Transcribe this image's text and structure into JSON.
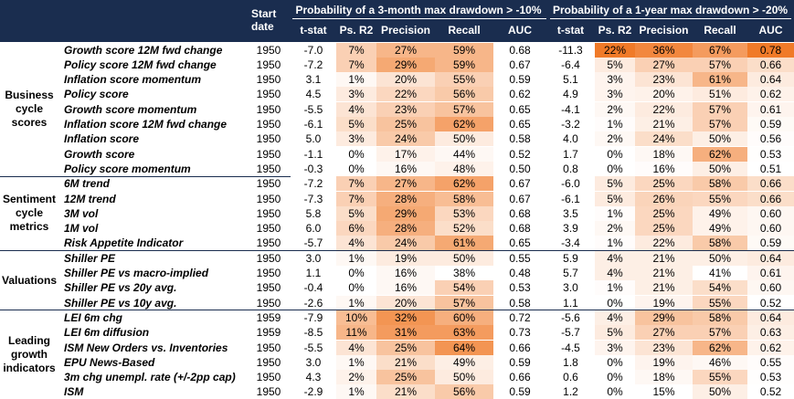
{
  "header": {
    "start_date_line1": "Start",
    "start_date_line2": "date",
    "group_3m": "Probability of a 3-month max drawdown > -10%",
    "group_1y": "Probability of a 1-year max drawdown > -20%",
    "columns": [
      "t-stat",
      "Ps. R2",
      "Precision",
      "Recall",
      "AUC"
    ]
  },
  "colors": {
    "header_bg": "#1a2d4f",
    "heat_low": "#ffffff",
    "heat_high": "#f07a28"
  },
  "groups": [
    {
      "label": [
        "Business",
        "cycle",
        "scores"
      ],
      "rows": [
        {
          "metric": "Growth score 12M fwd change",
          "start": "1950",
          "a": [
            "-7.0",
            "7%",
            "27%",
            "59%",
            "0.68"
          ],
          "b": [
            "-11.3",
            "22%",
            "36%",
            "67%",
            "0.78"
          ],
          "ha": [
            0,
            0.35,
            0.55,
            0.55,
            0
          ],
          "hb": [
            0,
            1.0,
            0.9,
            0.75,
            1.0
          ]
        },
        {
          "metric": "Policy score 12M fwd change",
          "start": "1950",
          "a": [
            "-7.2",
            "7%",
            "29%",
            "59%",
            "0.67"
          ],
          "b": [
            "-6.4",
            "5%",
            "27%",
            "57%",
            "0.66"
          ],
          "ha": [
            0,
            0.35,
            0.65,
            0.55,
            0
          ],
          "hb": [
            0,
            0.15,
            0.35,
            0.35,
            0.25
          ]
        },
        {
          "metric": "Inflation score momentum",
          "start": "1950",
          "a": [
            "3.1",
            "1%",
            "20%",
            "55%",
            "0.59"
          ],
          "b": [
            "5.1",
            "3%",
            "23%",
            "61%",
            "0.64"
          ],
          "ha": [
            0,
            0.05,
            0.2,
            0.35,
            0
          ],
          "hb": [
            0,
            0.08,
            0.2,
            0.55,
            0.15
          ]
        },
        {
          "metric": "Policy score",
          "start": "1950",
          "a": [
            "4.5",
            "3%",
            "22%",
            "56%",
            "0.62"
          ],
          "b": [
            "4.9",
            "3%",
            "20%",
            "51%",
            "0.62"
          ],
          "ha": [
            0,
            0.15,
            0.3,
            0.4,
            0
          ],
          "hb": [
            0,
            0.08,
            0.1,
            0.15,
            0.1
          ]
        },
        {
          "metric": "Growth score momentum",
          "start": "1950",
          "a": [
            "-5.5",
            "4%",
            "23%",
            "57%",
            "0.65"
          ],
          "b": [
            "-4.1",
            "2%",
            "22%",
            "57%",
            "0.61"
          ],
          "ha": [
            0,
            0.2,
            0.35,
            0.45,
            0
          ],
          "hb": [
            0,
            0.05,
            0.15,
            0.35,
            0.08
          ]
        },
        {
          "metric": "Inflation score 12M fwd change",
          "start": "1950",
          "a": [
            "-6.1",
            "5%",
            "25%",
            "62%",
            "0.65"
          ],
          "b": [
            "-3.2",
            "1%",
            "21%",
            "57%",
            "0.59"
          ],
          "ha": [
            0,
            0.25,
            0.45,
            0.7,
            0
          ],
          "hb": [
            0,
            0.02,
            0.12,
            0.35,
            0.04
          ]
        },
        {
          "metric": "Inflation score",
          "start": "1950",
          "a": [
            "5.0",
            "3%",
            "24%",
            "50%",
            "0.58"
          ],
          "b": [
            "4.0",
            "2%",
            "24%",
            "50%",
            "0.56"
          ],
          "ha": [
            0,
            0.15,
            0.4,
            0.15,
            0
          ],
          "hb": [
            0,
            0.05,
            0.25,
            0.12,
            0.02
          ]
        },
        {
          "metric": "Growth score",
          "start": "1950",
          "a": [
            "-1.1",
            "0%",
            "17%",
            "44%",
            "0.52"
          ],
          "b": [
            "1.7",
            "0%",
            "18%",
            "62%",
            "0.53"
          ],
          "ha": [
            0,
            0,
            0.1,
            0.05,
            0
          ],
          "hb": [
            0,
            0,
            0.05,
            0.6,
            0.01
          ]
        },
        {
          "metric": "Policy score momentum",
          "start": "1950",
          "a": [
            "-0.3",
            "0%",
            "16%",
            "48%",
            "0.50"
          ],
          "b": [
            "0.8",
            "0%",
            "16%",
            "50%",
            "0.51"
          ],
          "ha": [
            0,
            0,
            0.05,
            0.1,
            0
          ],
          "hb": [
            0,
            0,
            0.02,
            0.12,
            0
          ]
        }
      ]
    },
    {
      "label": [
        "Sentiment",
        "cycle",
        "metrics"
      ],
      "rows": [
        {
          "metric": "6M trend",
          "start": "1950",
          "a": [
            "-7.2",
            "7%",
            "27%",
            "62%",
            "0.67"
          ],
          "b": [
            "-6.0",
            "5%",
            "25%",
            "58%",
            "0.66"
          ],
          "ha": [
            0,
            0.35,
            0.55,
            0.7,
            0
          ],
          "hb": [
            0,
            0.15,
            0.3,
            0.4,
            0.25
          ]
        },
        {
          "metric": "12M trend",
          "start": "1950",
          "a": [
            "-7.3",
            "7%",
            "28%",
            "58%",
            "0.67"
          ],
          "b": [
            "-6.1",
            "5%",
            "26%",
            "55%",
            "0.66"
          ],
          "ha": [
            0,
            0.35,
            0.6,
            0.5,
            0
          ],
          "hb": [
            0,
            0.15,
            0.32,
            0.3,
            0.25
          ]
        },
        {
          "metric": "3M vol",
          "start": "1950",
          "a": [
            "5.8",
            "5%",
            "29%",
            "53%",
            "0.68"
          ],
          "b": [
            "3.5",
            "1%",
            "25%",
            "49%",
            "0.60"
          ],
          "ha": [
            0,
            0.25,
            0.65,
            0.3,
            0
          ],
          "hb": [
            0,
            0.02,
            0.3,
            0.1,
            0.06
          ]
        },
        {
          "metric": "1M vol",
          "start": "1950",
          "a": [
            "6.0",
            "6%",
            "28%",
            "52%",
            "0.68"
          ],
          "b": [
            "3.9",
            "2%",
            "25%",
            "49%",
            "0.60"
          ],
          "ha": [
            0,
            0.3,
            0.6,
            0.25,
            0
          ],
          "hb": [
            0,
            0.05,
            0.3,
            0.1,
            0.06
          ]
        },
        {
          "metric": "Risk Appetite Indicator",
          "start": "1950",
          "a": [
            "-5.7",
            "4%",
            "24%",
            "61%",
            "0.65"
          ],
          "b": [
            "-3.4",
            "1%",
            "22%",
            "58%",
            "0.59"
          ],
          "ha": [
            0,
            0.2,
            0.4,
            0.65,
            0
          ],
          "hb": [
            0,
            0.02,
            0.15,
            0.4,
            0.04
          ]
        }
      ]
    },
    {
      "label": [
        "Valuations"
      ],
      "rows": [
        {
          "metric": "Shiller PE",
          "start": "1950",
          "a": [
            "3.0",
            "1%",
            "19%",
            "50%",
            "0.55"
          ],
          "b": [
            "5.9",
            "4%",
            "21%",
            "50%",
            "0.64"
          ],
          "ha": [
            0,
            0.05,
            0.15,
            0.15,
            0
          ],
          "hb": [
            0,
            0.12,
            0.12,
            0.12,
            0.15
          ]
        },
        {
          "metric": "Shiller PE vs macro-implied",
          "start": "1950",
          "a": [
            "1.1",
            "0%",
            "16%",
            "38%",
            "0.48"
          ],
          "b": [
            "5.7",
            "4%",
            "21%",
            "41%",
            "0.61"
          ],
          "ha": [
            0,
            0,
            0.05,
            0,
            0
          ],
          "hb": [
            0,
            0.12,
            0.12,
            0,
            0.08
          ]
        },
        {
          "metric": "Shiller PE vs 20y avg.",
          "start": "1950",
          "a": [
            "-0.4",
            "0%",
            "16%",
            "54%",
            "0.53"
          ],
          "b": [
            "3.0",
            "1%",
            "21%",
            "54%",
            "0.60"
          ],
          "ha": [
            0,
            0,
            0.05,
            0.35,
            0
          ],
          "hb": [
            0,
            0.02,
            0.12,
            0.25,
            0.06
          ]
        },
        {
          "metric": "Shiller PE vs 10y avg.",
          "start": "1950",
          "a": [
            "-2.6",
            "1%",
            "20%",
            "57%",
            "0.58"
          ],
          "b": [
            "1.1",
            "0%",
            "19%",
            "55%",
            "0.52"
          ],
          "ha": [
            0,
            0.05,
            0.2,
            0.45,
            0
          ],
          "hb": [
            0,
            0,
            0.08,
            0.3,
            0
          ]
        }
      ]
    },
    {
      "label": [
        "Leading",
        "growth",
        "indicators"
      ],
      "rows": [
        {
          "metric": "LEI 6m chg",
          "start": "1959",
          "a": [
            "-7.9",
            "10%",
            "32%",
            "60%",
            "0.72"
          ],
          "b": [
            "-5.6",
            "4%",
            "29%",
            "58%",
            "0.64"
          ],
          "ha": [
            0,
            0.5,
            0.8,
            0.6,
            0
          ],
          "hb": [
            0,
            0.12,
            0.45,
            0.4,
            0.15
          ]
        },
        {
          "metric": "LEI 6m diffusion",
          "start": "1959",
          "a": [
            "-8.5",
            "11%",
            "31%",
            "63%",
            "0.73"
          ],
          "b": [
            "-5.7",
            "5%",
            "27%",
            "57%",
            "0.63"
          ],
          "ha": [
            0,
            0.55,
            0.75,
            0.75,
            0
          ],
          "hb": [
            0,
            0.15,
            0.35,
            0.35,
            0.12
          ]
        },
        {
          "metric": "ISM New Orders vs. Inventories",
          "start": "1950",
          "a": [
            "-5.5",
            "4%",
            "25%",
            "64%",
            "0.66"
          ],
          "b": [
            "-4.5",
            "3%",
            "23%",
            "62%",
            "0.62"
          ],
          "ha": [
            0,
            0.2,
            0.45,
            0.8,
            0
          ],
          "hb": [
            0,
            0.08,
            0.2,
            0.55,
            0.1
          ]
        },
        {
          "metric": "EPU News-Based",
          "start": "1950",
          "a": [
            "3.0",
            "1%",
            "21%",
            "49%",
            "0.59"
          ],
          "b": [
            "1.8",
            "0%",
            "19%",
            "46%",
            "0.55"
          ],
          "ha": [
            0,
            0.05,
            0.25,
            0.12,
            0
          ],
          "hb": [
            0,
            0,
            0.08,
            0.05,
            0.02
          ]
        },
        {
          "metric": "3m chg unempl. rate (+/-2pp cap)",
          "start": "1950",
          "a": [
            "4.3",
            "2%",
            "25%",
            "50%",
            "0.66"
          ],
          "b": [
            "0.6",
            "0%",
            "18%",
            "55%",
            "0.53"
          ],
          "ha": [
            0,
            0.1,
            0.45,
            0.15,
            0
          ],
          "hb": [
            0,
            0,
            0.05,
            0.3,
            0.01
          ]
        },
        {
          "metric": "ISM",
          "start": "1950",
          "a": [
            "-2.9",
            "1%",
            "21%",
            "56%",
            "0.59"
          ],
          "b": [
            "1.2",
            "0%",
            "15%",
            "50%",
            "0.52"
          ],
          "ha": [
            0,
            0.05,
            0.25,
            0.4,
            0
          ],
          "hb": [
            0,
            0,
            0,
            0.12,
            0
          ]
        }
      ]
    }
  ]
}
